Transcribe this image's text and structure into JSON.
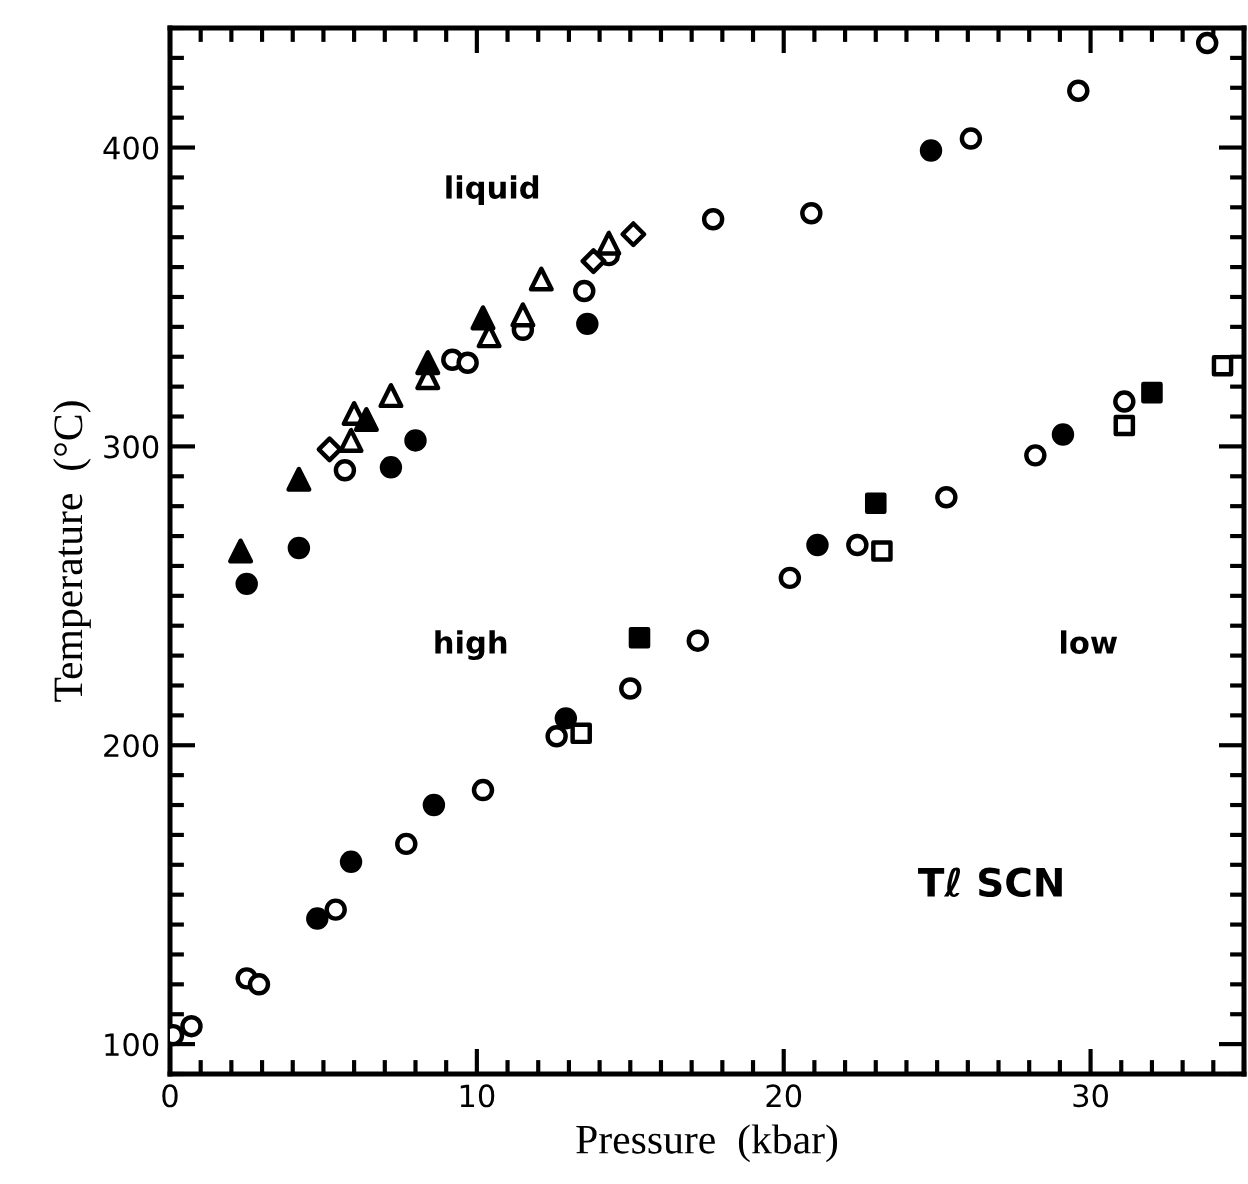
{
  "chart_data": {
    "type": "scatter",
    "xlabel": "Pressure  (kbar)",
    "ylabel": "Temperature  (°C)",
    "xlim": [
      0,
      35
    ],
    "ylim": [
      90,
      440
    ],
    "xticks": [
      0,
      10,
      20,
      30
    ],
    "yticks": [
      100,
      200,
      300,
      400
    ],
    "grid": false,
    "annotations": [
      "liquid",
      "high",
      "low",
      "Tℓ SCN"
    ],
    "series": [
      {
        "marker": "triangle",
        "color": "#000000",
        "x": [
          2.3,
          4.2,
          6.4,
          8.4,
          10.2
        ],
        "values": [
          265,
          289,
          309,
          328,
          343
        ]
      },
      {
        "marker": "triangle",
        "color": "#ffffff",
        "x": [
          6.0,
          5.9,
          7.2,
          8.4,
          10.4,
          11.5,
          12.1,
          14.3
        ],
        "values": [
          311,
          302,
          317,
          323,
          337,
          344,
          356,
          368
        ]
      },
      {
        "marker": "diamond",
        "color": "#ffffff",
        "x": [
          5.2,
          13.8,
          15.1
        ],
        "values": [
          299,
          362,
          371
        ]
      },
      {
        "marker": "circle",
        "color": "#ffffff",
        "x": [
          5.7,
          9.2,
          9.7,
          11.5,
          13.5,
          14.3,
          17.7,
          20.9,
          26.1,
          29.6,
          33.8,
          0.1,
          0.7,
          2.5,
          2.9,
          5.4,
          7.7,
          10.2,
          12.6,
          15.0,
          17.2,
          20.2,
          22.4,
          25.3,
          28.2,
          31.1
        ],
        "values": [
          292,
          329,
          328,
          339,
          352,
          364,
          376,
          378,
          403,
          419,
          435,
          103,
          106,
          122,
          120,
          145,
          167,
          185,
          203,
          219,
          235,
          256,
          267,
          283,
          297,
          315
        ]
      },
      {
        "marker": "circle",
        "color": "#000000",
        "x": [
          2.5,
          4.2,
          7.2,
          8.0,
          13.6,
          24.8,
          4.8,
          5.9,
          8.6,
          12.9,
          21.1,
          29.1
        ],
        "values": [
          254,
          266,
          293,
          302,
          341,
          399,
          142,
          161,
          180,
          209,
          267,
          304
        ]
      },
      {
        "marker": "square",
        "color": "#000000",
        "x": [
          15.3,
          23.0,
          32.0
        ],
        "values": [
          236,
          281,
          318
        ]
      },
      {
        "marker": "square",
        "color": "#ffffff",
        "x": [
          13.4,
          23.2,
          31.1,
          34.3
        ],
        "values": [
          204,
          265,
          307,
          327
        ]
      }
    ]
  }
}
